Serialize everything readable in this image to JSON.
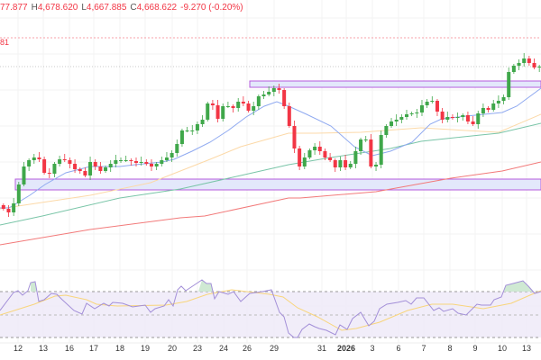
{
  "header": {
    "open_partial": "77.877",
    "high_label": "H",
    "high": "4,678.620",
    "low_label": "L",
    "low": "4,667.885",
    "close_label": "C",
    "close": "4,668.622",
    "change": "-9.270 (-0.20%)"
  },
  "price_line_label": "81",
  "x_axis_labels": [
    "12",
    "13",
    "16",
    "17",
    "18",
    "19",
    "20",
    "23",
    "24",
    "26",
    "29",
    "31",
    "2026",
    "3",
    "6",
    "7",
    "8",
    "9",
    "10",
    "13"
  ],
  "colors": {
    "up": "#3fa74a",
    "down": "#f23645",
    "ma_fast": "#8fa9f0",
    "ma_mid": "#fcd9a8",
    "ma_slow": "#7ac5a8",
    "ma_long": "#f27a7a",
    "zone": "#b45bdc",
    "rsi": "#a38fd8",
    "rsi_ma": "#f8d57c"
  },
  "chart_data": {
    "type": "candlestick",
    "first_open": 4515,
    "closes": [
      4511,
      4507,
      4517,
      4538,
      4558,
      4565,
      4568,
      4566,
      4551,
      4550,
      4561,
      4566,
      4565,
      4561,
      4555,
      4553,
      4548,
      4563,
      4558,
      4553,
      4557,
      4561,
      4565,
      4565,
      4565,
      4564,
      4562,
      4563,
      4561,
      4558,
      4561,
      4565,
      4568,
      4573,
      4583,
      4598,
      4598,
      4598,
      4605,
      4610,
      4628,
      4626,
      4611,
      4625,
      4625,
      4623,
      4630,
      4628,
      4620,
      4625,
      4636,
      4638,
      4641,
      4645,
      4643,
      4625,
      4603,
      4578,
      4558,
      4568,
      4576,
      4580,
      4575,
      4568,
      4565,
      4557,
      4565,
      4557,
      4561,
      4575,
      4588,
      4588,
      4558,
      4560,
      4593,
      4603,
      4608,
      4610,
      4613,
      4616,
      4617,
      4618,
      4626,
      4630,
      4631,
      4619,
      4610,
      4613,
      4612,
      4613,
      4615,
      4608,
      4605,
      4617,
      4623,
      4621,
      4628,
      4631,
      4635,
      4663,
      4670,
      4673,
      4678,
      4673,
      4668,
      4669
    ],
    "zones": [
      {
        "top": 4653,
        "bottom": 4646
      },
      {
        "top": 4544,
        "bottom": 4532
      }
    ],
    "price_line": 4701,
    "last_price": 4669,
    "rsi_levels": [
      70,
      50,
      30
    ]
  }
}
